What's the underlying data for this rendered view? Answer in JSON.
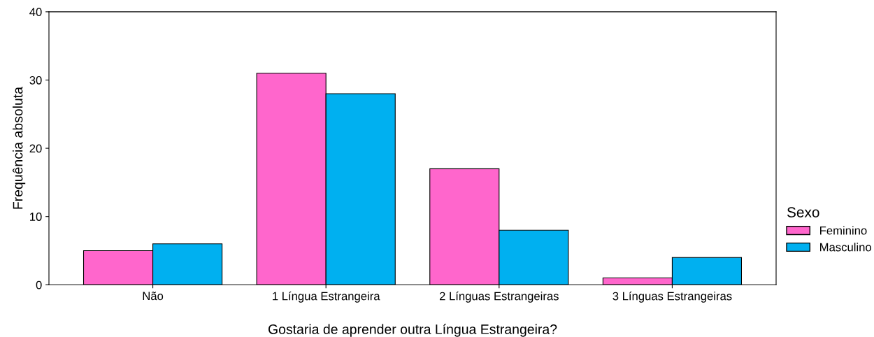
{
  "chart_data": {
    "type": "bar",
    "xlabel": "Gostaria de aprender outra Língua Estrangeira?",
    "ylabel": "Frequência absoluta",
    "legend_title": "Sexo",
    "categories": [
      "Não",
      "1 Língua Estrangeira",
      "2 Línguas Estrangeiras",
      "3 Línguas Estrangeiras"
    ],
    "series": [
      {
        "name": "Feminino",
        "color": "#ff66cc",
        "values": [
          5,
          31,
          17,
          1
        ]
      },
      {
        "name": "Masculino",
        "color": "#00b0f0",
        "values": [
          6,
          28,
          8,
          4
        ]
      }
    ],
    "ylim": [
      0,
      40
    ],
    "yticks": [
      0,
      10,
      20,
      30,
      40
    ],
    "grid": false,
    "legend": "right"
  }
}
